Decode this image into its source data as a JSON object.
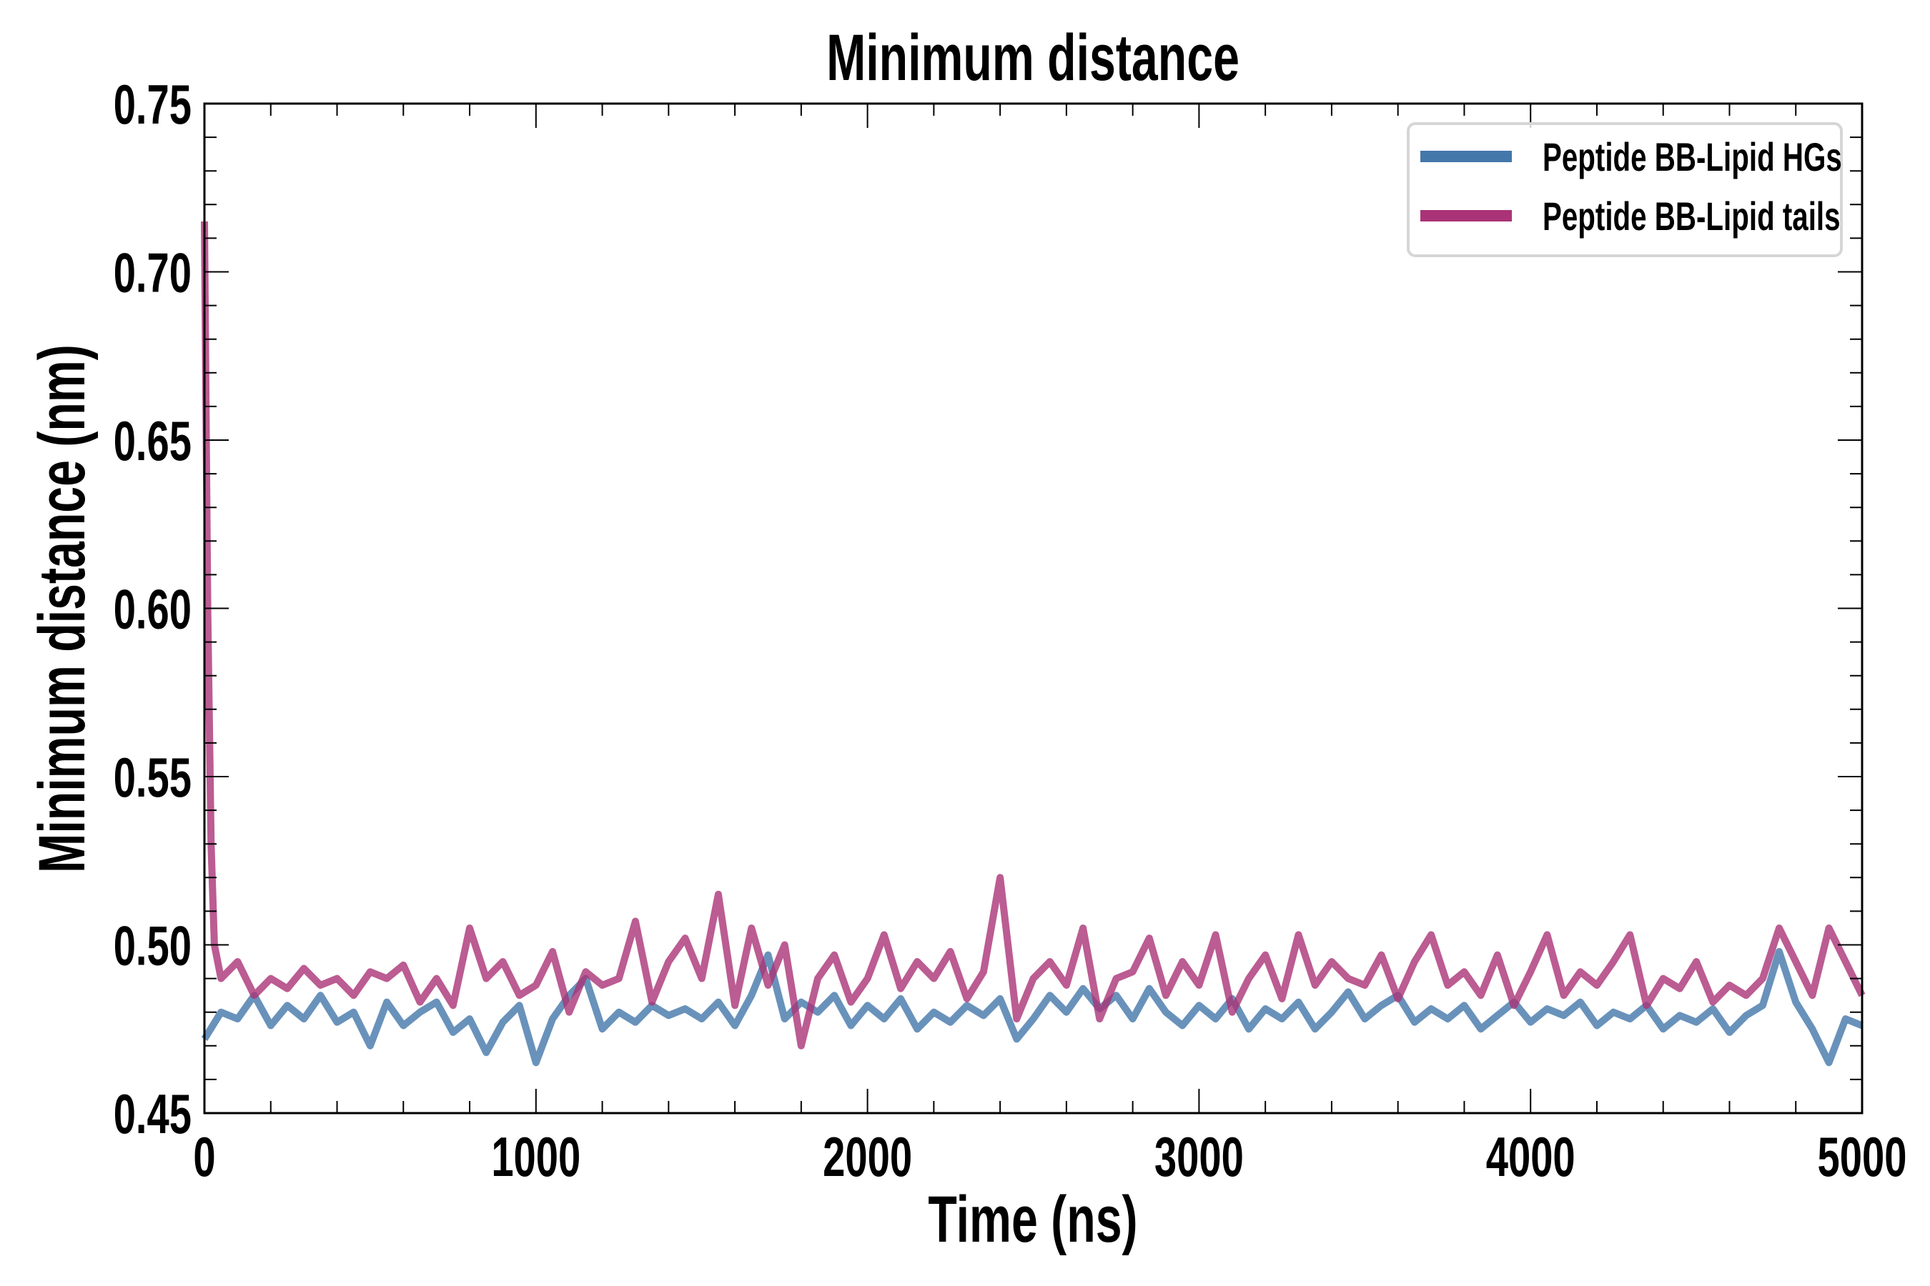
{
  "chart_data": {
    "type": "line",
    "title": "Minimum distance",
    "xlabel": "Time (ns)",
    "ylabel": "Minimum distance (nm)",
    "xlim": [
      0,
      5000
    ],
    "ylim": [
      0.45,
      0.75
    ],
    "xticks": [
      "0",
      "1000",
      "2000",
      "3000",
      "4000",
      "5000"
    ],
    "xtick_values": [
      0,
      1000,
      2000,
      3000,
      4000,
      5000
    ],
    "yticks": [
      "0.45",
      "0.50",
      "0.55",
      "0.60",
      "0.65",
      "0.70",
      "0.75"
    ],
    "ytick_values": [
      0.45,
      0.5,
      0.55,
      0.6,
      0.65,
      0.7,
      0.75
    ],
    "x_minor_step": 200,
    "y_minor_step": 0.01,
    "grid": false,
    "legend_position": "top-right",
    "series": [
      {
        "name": "Peptide BB-Lipid HGs",
        "color": "#4477aa",
        "x": [
          0,
          50,
          100,
          150,
          200,
          250,
          300,
          350,
          400,
          450,
          500,
          550,
          600,
          650,
          700,
          750,
          800,
          850,
          900,
          950,
          1000,
          1050,
          1100,
          1150,
          1200,
          1250,
          1300,
          1350,
          1400,
          1450,
          1500,
          1550,
          1600,
          1650,
          1700,
          1750,
          1800,
          1850,
          1900,
          1950,
          2000,
          2050,
          2100,
          2150,
          2200,
          2250,
          2300,
          2350,
          2400,
          2450,
          2500,
          2550,
          2600,
          2650,
          2700,
          2750,
          2800,
          2850,
          2900,
          2950,
          3000,
          3050,
          3100,
          3150,
          3200,
          3250,
          3300,
          3350,
          3400,
          3450,
          3500,
          3550,
          3600,
          3650,
          3700,
          3750,
          3800,
          3850,
          3900,
          3950,
          4000,
          4050,
          4100,
          4150,
          4200,
          4250,
          4300,
          4350,
          4400,
          4450,
          4500,
          4550,
          4600,
          4650,
          4700,
          4750,
          4800,
          4850,
          4900,
          4950,
          5000
        ],
        "values": [
          0.472,
          0.48,
          0.478,
          0.485,
          0.476,
          0.482,
          0.478,
          0.485,
          0.477,
          0.48,
          0.47,
          0.483,
          0.476,
          0.48,
          0.483,
          0.474,
          0.478,
          0.468,
          0.477,
          0.482,
          0.465,
          0.478,
          0.485,
          0.49,
          0.475,
          0.48,
          0.477,
          0.482,
          0.479,
          0.481,
          0.478,
          0.483,
          0.476,
          0.485,
          0.497,
          0.478,
          0.483,
          0.48,
          0.485,
          0.476,
          0.482,
          0.478,
          0.484,
          0.475,
          0.48,
          0.477,
          0.482,
          0.479,
          0.484,
          0.472,
          0.478,
          0.485,
          0.48,
          0.487,
          0.481,
          0.485,
          0.478,
          0.487,
          0.48,
          0.476,
          0.482,
          0.478,
          0.484,
          0.475,
          0.481,
          0.478,
          0.483,
          0.475,
          0.48,
          0.486,
          0.478,
          0.482,
          0.485,
          0.477,
          0.481,
          0.478,
          0.482,
          0.475,
          0.479,
          0.483,
          0.477,
          0.481,
          0.479,
          0.483,
          0.476,
          0.48,
          0.478,
          0.482,
          0.475,
          0.479,
          0.477,
          0.481,
          0.474,
          0.479,
          0.482,
          0.498,
          0.483,
          0.475,
          0.465,
          0.478,
          0.476
        ]
      },
      {
        "name": "Peptide BB-Lipid tails",
        "color": "#aa3377",
        "x": [
          0,
          10,
          20,
          30,
          50,
          100,
          150,
          200,
          250,
          300,
          350,
          400,
          450,
          500,
          550,
          600,
          650,
          700,
          750,
          800,
          850,
          900,
          950,
          1000,
          1050,
          1100,
          1150,
          1200,
          1250,
          1300,
          1350,
          1400,
          1450,
          1500,
          1550,
          1600,
          1650,
          1700,
          1750,
          1800,
          1850,
          1900,
          1950,
          2000,
          2050,
          2100,
          2150,
          2200,
          2250,
          2300,
          2350,
          2400,
          2450,
          2500,
          2550,
          2600,
          2650,
          2700,
          2750,
          2800,
          2850,
          2900,
          2950,
          3000,
          3050,
          3100,
          3150,
          3200,
          3250,
          3300,
          3350,
          3400,
          3450,
          3500,
          3550,
          3600,
          3650,
          3700,
          3750,
          3800,
          3850,
          3900,
          3950,
          4000,
          4050,
          4100,
          4150,
          4200,
          4250,
          4300,
          4350,
          4400,
          4450,
          4500,
          4550,
          4600,
          4650,
          4700,
          4750,
          4800,
          4850,
          4900,
          4950,
          5000
        ],
        "values": [
          0.715,
          0.6,
          0.53,
          0.5,
          0.49,
          0.495,
          0.485,
          0.49,
          0.487,
          0.493,
          0.488,
          0.49,
          0.485,
          0.492,
          0.49,
          0.494,
          0.483,
          0.49,
          0.482,
          0.505,
          0.49,
          0.495,
          0.485,
          0.488,
          0.498,
          0.48,
          0.492,
          0.488,
          0.49,
          0.507,
          0.483,
          0.495,
          0.502,
          0.49,
          0.515,
          0.482,
          0.505,
          0.488,
          0.5,
          0.47,
          0.49,
          0.497,
          0.483,
          0.49,
          0.503,
          0.487,
          0.495,
          0.49,
          0.498,
          0.484,
          0.492,
          0.52,
          0.478,
          0.49,
          0.495,
          0.488,
          0.505,
          0.478,
          0.49,
          0.492,
          0.502,
          0.485,
          0.495,
          0.488,
          0.503,
          0.48,
          0.49,
          0.497,
          0.484,
          0.503,
          0.488,
          0.495,
          0.49,
          0.488,
          0.497,
          0.484,
          0.495,
          0.503,
          0.488,
          0.492,
          0.485,
          0.497,
          0.482,
          0.492,
          0.503,
          0.485,
          0.492,
          0.488,
          0.495,
          0.503,
          0.482,
          0.49,
          0.487,
          0.495,
          0.483,
          0.488,
          0.485,
          0.49,
          0.505,
          0.495,
          0.485,
          0.505,
          0.495,
          0.485
        ]
      }
    ]
  }
}
